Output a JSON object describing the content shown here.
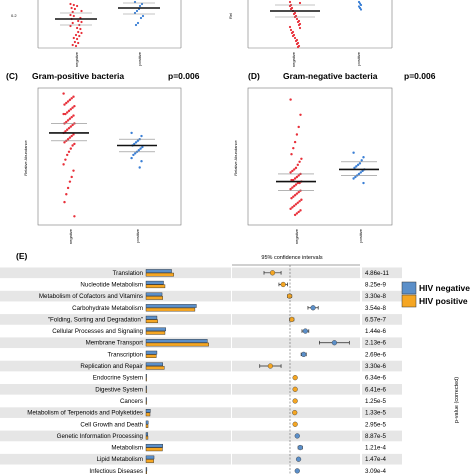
{
  "panel_labels": {
    "C": "(C)",
    "D": "(D)",
    "E": "(E)"
  },
  "panels": {
    "top_left": {
      "y_tick_0_2": "0.2",
      "x_categories": [
        "negative",
        "positive"
      ]
    },
    "top_right": {
      "ylabel_fragment": "Rel",
      "x_categories": [
        "negative",
        "positive"
      ]
    },
    "C": {
      "title": "Gram-positive bacteria",
      "pvalue": "p=0.006",
      "ylabel": "Relative Abundance",
      "x_categories": [
        "negative",
        "positive"
      ]
    },
    "D": {
      "title": "Gram-negative bacteria",
      "pvalue": "p=0.006",
      "ylabel": "Relative Abundance",
      "x_categories": [
        "negative",
        "positive"
      ]
    },
    "E": {
      "ci_title": "95% confidence intervals",
      "pvalue_axis": "p-value (corrected)",
      "legend": [
        "HIV negative",
        "HIV positive"
      ]
    }
  },
  "colors": {
    "negative": "#e8303a",
    "positive": "#3a7fd5",
    "hiv_negative": "#5b8fc9",
    "hiv_positive": "#f5a623",
    "row_shade": "#e6e6e6"
  },
  "chart_data": [
    {
      "type": "scatter",
      "panel": "C",
      "title": "Gram-positive bacteria",
      "annotation": "p=0.006",
      "ylabel": "Relative Abundance",
      "categories": [
        "negative",
        "positive"
      ],
      "ylim": [
        0.18,
        1.0
      ],
      "series": [
        {
          "name": "negative",
          "mean": 0.74,
          "upper": 0.8,
          "lower": 0.69,
          "values": [
            0.99,
            0.97,
            0.96,
            0.95,
            0.94,
            0.93,
            0.92,
            0.91,
            0.9,
            0.89,
            0.88,
            0.87,
            0.86,
            0.86,
            0.85,
            0.84,
            0.83,
            0.82,
            0.81,
            0.8,
            0.8,
            0.79,
            0.78,
            0.77,
            0.76,
            0.75,
            0.74,
            0.73,
            0.72,
            0.71,
            0.7,
            0.69,
            0.68,
            0.67,
            0.66,
            0.64,
            0.62,
            0.6,
            0.57,
            0.54,
            0.5,
            0.46,
            0.43,
            0.39,
            0.35,
            0.3,
            0.21
          ]
        },
        {
          "name": "positive",
          "mean": 0.66,
          "upper": 0.7,
          "lower": 0.62,
          "values": [
            0.74,
            0.72,
            0.7,
            0.69,
            0.68,
            0.67,
            0.66,
            0.65,
            0.64,
            0.63,
            0.62,
            0.61,
            0.6,
            0.58,
            0.56,
            0.52
          ]
        }
      ]
    },
    {
      "type": "scatter",
      "panel": "D",
      "title": "Gram-negative bacteria",
      "annotation": "p=0.006",
      "ylabel": "Relative Abundance",
      "categories": [
        "negative",
        "positive"
      ],
      "ylim": [
        0.0,
        0.85
      ],
      "series": [
        {
          "name": "negative",
          "mean": 0.26,
          "upper": 0.31,
          "lower": 0.2,
          "values": [
            0.8,
            0.7,
            0.62,
            0.57,
            0.52,
            0.48,
            0.44,
            0.41,
            0.39,
            0.37,
            0.35,
            0.34,
            0.33,
            0.32,
            0.31,
            0.3,
            0.29,
            0.28,
            0.27,
            0.27,
            0.26,
            0.25,
            0.25,
            0.24,
            0.23,
            0.22,
            0.21,
            0.2,
            0.19,
            0.18,
            0.17,
            0.16,
            0.15,
            0.14,
            0.13,
            0.12,
            0.11,
            0.1,
            0.09,
            0.08,
            0.07,
            0.06,
            0.05,
            0.04
          ]
        },
        {
          "name": "positive",
          "mean": 0.34,
          "upper": 0.39,
          "lower": 0.3,
          "values": [
            0.45,
            0.42,
            0.4,
            0.38,
            0.37,
            0.36,
            0.35,
            0.34,
            0.33,
            0.32,
            0.31,
            0.3,
            0.29,
            0.28,
            0.25
          ]
        }
      ]
    },
    {
      "type": "bar",
      "panel": "E",
      "title": "95% confidence intervals",
      "categories": [
        "Translation",
        "Nucleotide Metabolism",
        "Metabolism of Cofactors and Vitamins",
        "Carbohydrate Metabolism",
        "\"Folding, Sorting and Degradation\"",
        "Cellular Processes and Signaling",
        "Membrane Transport",
        "Transcription",
        "Replication and Repair",
        "Endocrine System",
        "Digestive System",
        "Cancers",
        "Metabolism of Terpenoids and Polyketides",
        "Cell Growth and Death",
        "Genetic Information Processing",
        "Metabolism",
        "Lipid Metabolism",
        "Infectious Diseases"
      ],
      "series": [
        {
          "name": "HIV negative",
          "values": [
            3.5,
            2.4,
            2.2,
            6.9,
            1.5,
            2.7,
            8.4,
            1.5,
            2.3,
            0.05,
            0.05,
            0.05,
            0.6,
            0.3,
            0.25,
            2.3,
            1.1,
            0.12
          ]
        },
        {
          "name": "HIV positive",
          "values": [
            3.8,
            2.6,
            2.3,
            6.7,
            1.6,
            2.6,
            8.6,
            1.4,
            2.5,
            0.05,
            0.05,
            0.05,
            0.55,
            0.28,
            0.27,
            2.25,
            1.05,
            0.1
          ]
        }
      ],
      "ci_xlim": [
        -1.5,
        1.5
      ],
      "differences": [
        {
          "center": -0.55,
          "low": -0.75,
          "high": -0.35
        },
        {
          "center": -0.3,
          "low": -0.4,
          "high": -0.2
        },
        {
          "center": -0.15,
          "low": -0.2,
          "high": -0.1
        },
        {
          "center": 0.4,
          "low": 0.28,
          "high": 0.52
        },
        {
          "center": -0.1,
          "low": -0.15,
          "high": -0.05
        },
        {
          "center": 0.22,
          "low": 0.14,
          "high": 0.3
        },
        {
          "center": 0.9,
          "low": 0.55,
          "high": 1.25
        },
        {
          "center": 0.18,
          "low": 0.12,
          "high": 0.24
        },
        {
          "center": -0.6,
          "low": -0.85,
          "high": -0.35
        },
        {
          "center": -0.02,
          "low": -0.04,
          "high": 0.0
        },
        {
          "center": -0.02,
          "low": -0.04,
          "high": 0.0
        },
        {
          "center": -0.02,
          "low": -0.04,
          "high": 0.0
        },
        {
          "center": -0.03,
          "low": -0.06,
          "high": 0.0
        },
        {
          "center": -0.02,
          "low": -0.04,
          "high": 0.0
        },
        {
          "center": 0.03,
          "low": 0.0,
          "high": 0.06
        },
        {
          "center": 0.1,
          "low": 0.05,
          "high": 0.15
        },
        {
          "center": 0.06,
          "low": 0.03,
          "high": 0.09
        },
        {
          "center": 0.03,
          "low": 0.01,
          "high": 0.05
        }
      ],
      "pvalues": [
        "4.86e-11",
        "8.25e-9",
        "3.30e-8",
        "3.54e-8",
        "6.57e-7",
        "1.44e-6",
        "2.13e-6",
        "2.69e-6",
        "3.30e-6",
        "6.34e-6",
        "6.41e-6",
        "1.25e-5",
        "1.33e-5",
        "2.95e-5",
        "8.87e-5",
        "1.21e-4",
        "1.47e-4",
        "3.09e-4"
      ],
      "legend": [
        "HIV negative",
        "HIV positive"
      ]
    }
  ]
}
